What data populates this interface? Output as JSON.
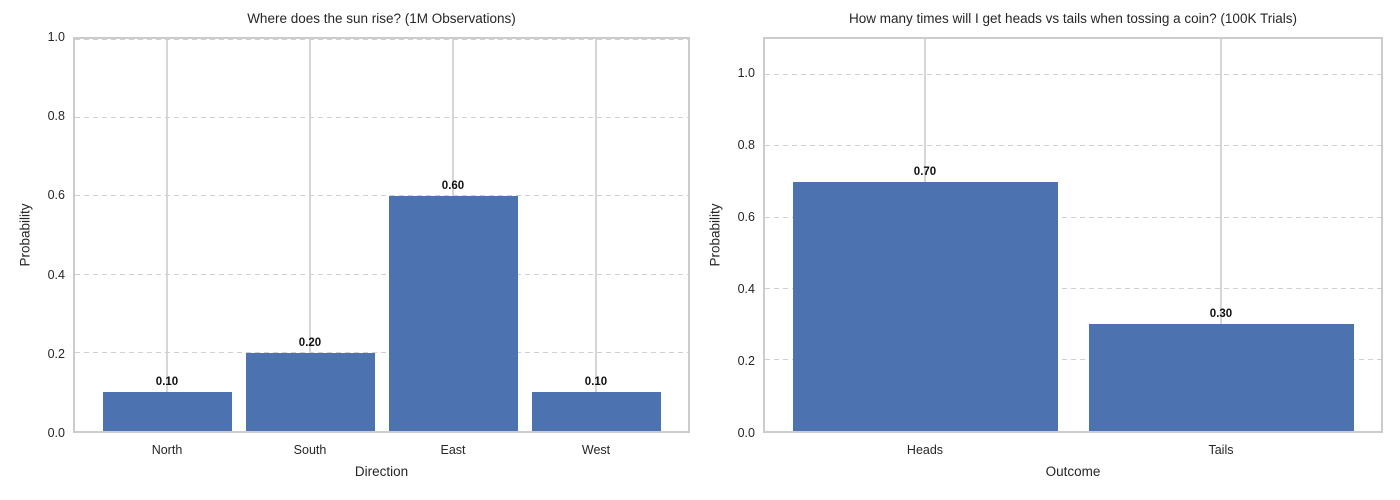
{
  "figure": {
    "background": "#ffffff",
    "grid": true,
    "legend_position": "none"
  },
  "chart_data": [
    {
      "type": "bar",
      "title": "Where does the sun rise? (1M Observations)",
      "xlabel": "Direction",
      "ylabel": "Probability",
      "categories": [
        "North",
        "South",
        "East",
        "West"
      ],
      "values": [
        0.1,
        0.2,
        0.6,
        0.1
      ],
      "bar_labels": [
        "0.10",
        "0.20",
        "0.60",
        "0.10"
      ],
      "yticks": [
        0.0,
        0.2,
        0.4,
        0.6,
        0.8,
        1.0
      ],
      "ytick_labels": [
        "0.0",
        "0.2",
        "0.4",
        "0.6",
        "0.8",
        "1.0"
      ],
      "ylim": [
        0,
        1.0
      ],
      "bar_color": "#4C72B0"
    },
    {
      "type": "bar",
      "title": "How many times will I get heads vs tails when tossing a coin? (100K Trials)",
      "xlabel": "Outcome",
      "ylabel": "Probability",
      "categories": [
        "Heads",
        "Tails"
      ],
      "values": [
        0.7,
        0.3
      ],
      "bar_labels": [
        "0.70",
        "0.30"
      ],
      "yticks": [
        0.0,
        0.2,
        0.4,
        0.6,
        0.8,
        1.0
      ],
      "ytick_labels": [
        "0.0",
        "0.2",
        "0.4",
        "0.6",
        "0.8",
        "1.0"
      ],
      "ylim": [
        0,
        1.1
      ],
      "bar_color": "#4C72B0"
    }
  ]
}
